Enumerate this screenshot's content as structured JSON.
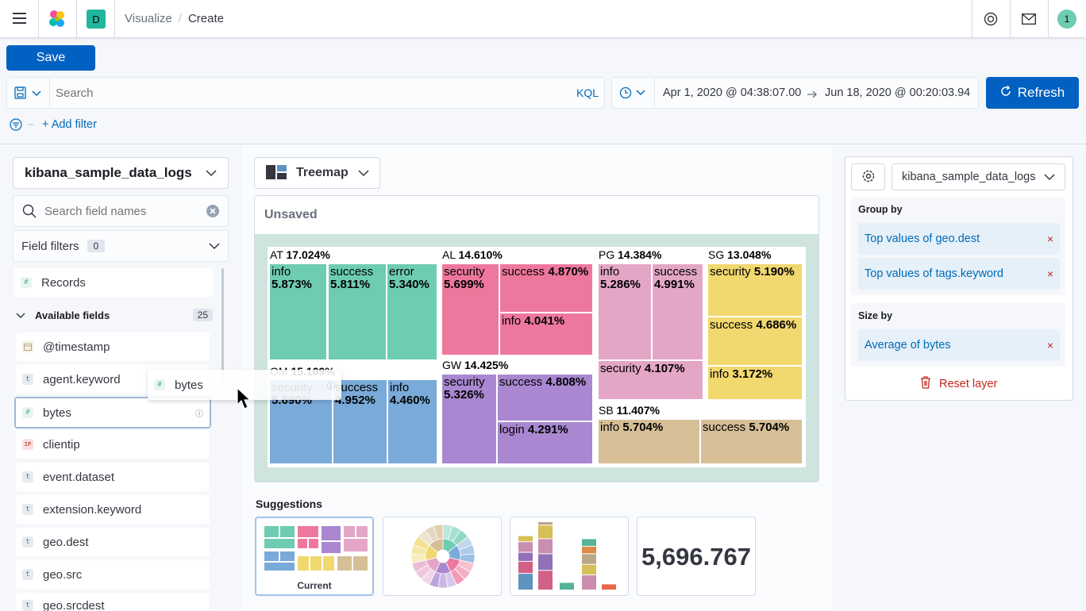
{
  "header": {
    "space_badge": "D",
    "breadcrumbs": [
      "Visualize",
      "Create"
    ],
    "avatar": "1",
    "separator": "/"
  },
  "toolbar": {
    "save_label": "Save"
  },
  "query": {
    "placeholder": "Search",
    "language": "KQL",
    "date_start": "Apr 1, 2020 @ 04:38:07.00",
    "date_end": "Jun 18, 2020 @ 00:20:03.94",
    "refresh_label": "Refresh",
    "add_filter": "+ Add filter"
  },
  "sidebar": {
    "index_pattern": "kibana_sample_data_logs",
    "search_placeholder": "Search field names",
    "field_filters_label": "Field filters",
    "field_filters_count": "0",
    "records_label": "Records",
    "available_label": "Available fields",
    "available_count": "25",
    "fields": [
      {
        "type": "date",
        "name": "@timestamp"
      },
      {
        "type": "t",
        "name": "agent.keyword"
      },
      {
        "type": "#",
        "name": "bytes"
      },
      {
        "type": "IP",
        "name": "clientip"
      },
      {
        "type": "t",
        "name": "event.dataset"
      },
      {
        "type": "t",
        "name": "extension.keyword"
      },
      {
        "type": "t",
        "name": "geo.dest"
      },
      {
        "type": "t",
        "name": "geo.src"
      },
      {
        "type": "t",
        "name": "geo.srcdest"
      }
    ],
    "drag_ghost": "bytes"
  },
  "workspace": {
    "chart_type": "Treemap",
    "title": "Unsaved"
  },
  "chart_data": {
    "type": "treemap",
    "metric": "Average of bytes",
    "groups": [
      {
        "name": "AT",
        "value": "17.024%",
        "color": "#6dccb1",
        "children": [
          {
            "name": "info",
            "value": "5.873%"
          },
          {
            "name": "success",
            "value": "5.811%"
          },
          {
            "name": "error",
            "value": "5.340%"
          }
        ]
      },
      {
        "name": "OM",
        "value": "15.109%",
        "color": "#79aad9",
        "children": [
          {
            "name": "security",
            "value": "5.690%"
          },
          {
            "name": "success",
            "value": "4.952%"
          },
          {
            "name": "info",
            "value": "4.460%"
          }
        ]
      },
      {
        "name": "AL",
        "value": "14.610%",
        "color": "#ee789d",
        "children": [
          {
            "name": "security",
            "value": "5.699%"
          },
          {
            "name": "success",
            "value": "4.870%"
          },
          {
            "name": "info",
            "value": "4.041%"
          }
        ]
      },
      {
        "name": "GW",
        "value": "14.425%",
        "color": "#a987d1",
        "children": [
          {
            "name": "security",
            "value": "5.326%"
          },
          {
            "name": "success",
            "value": "4.808%"
          },
          {
            "name": "login",
            "value": "4.291%"
          }
        ]
      },
      {
        "name": "PG",
        "value": "14.384%",
        "color": "#e4a6c7",
        "children": [
          {
            "name": "info",
            "value": "5.286%"
          },
          {
            "name": "success",
            "value": "4.991%"
          },
          {
            "name": "security",
            "value": "4.107%"
          }
        ]
      },
      {
        "name": "SG",
        "value": "13.048%",
        "color": "#f1d86f",
        "children": [
          {
            "name": "security",
            "value": "5.190%"
          },
          {
            "name": "success",
            "value": "4.686%"
          },
          {
            "name": "info",
            "value": "3.172%"
          }
        ]
      },
      {
        "name": "SB",
        "value": "11.407%",
        "color": "#d6bf97",
        "children": [
          {
            "name": "info",
            "value": "5.704%"
          },
          {
            "name": "success",
            "value": "5.704%"
          }
        ]
      }
    ]
  },
  "suggestions": {
    "title": "Suggestions",
    "current_label": "Current",
    "metric_value": "5,696.767"
  },
  "config": {
    "index_pattern": "kibana_sample_data_logs",
    "group_by_label": "Group by",
    "group_by": [
      "Top values of geo.dest",
      "Top values of tags.keyword"
    ],
    "size_by_label": "Size by",
    "size_by": "Average of bytes",
    "reset_label": "Reset layer",
    "remove_glyph": "×"
  }
}
